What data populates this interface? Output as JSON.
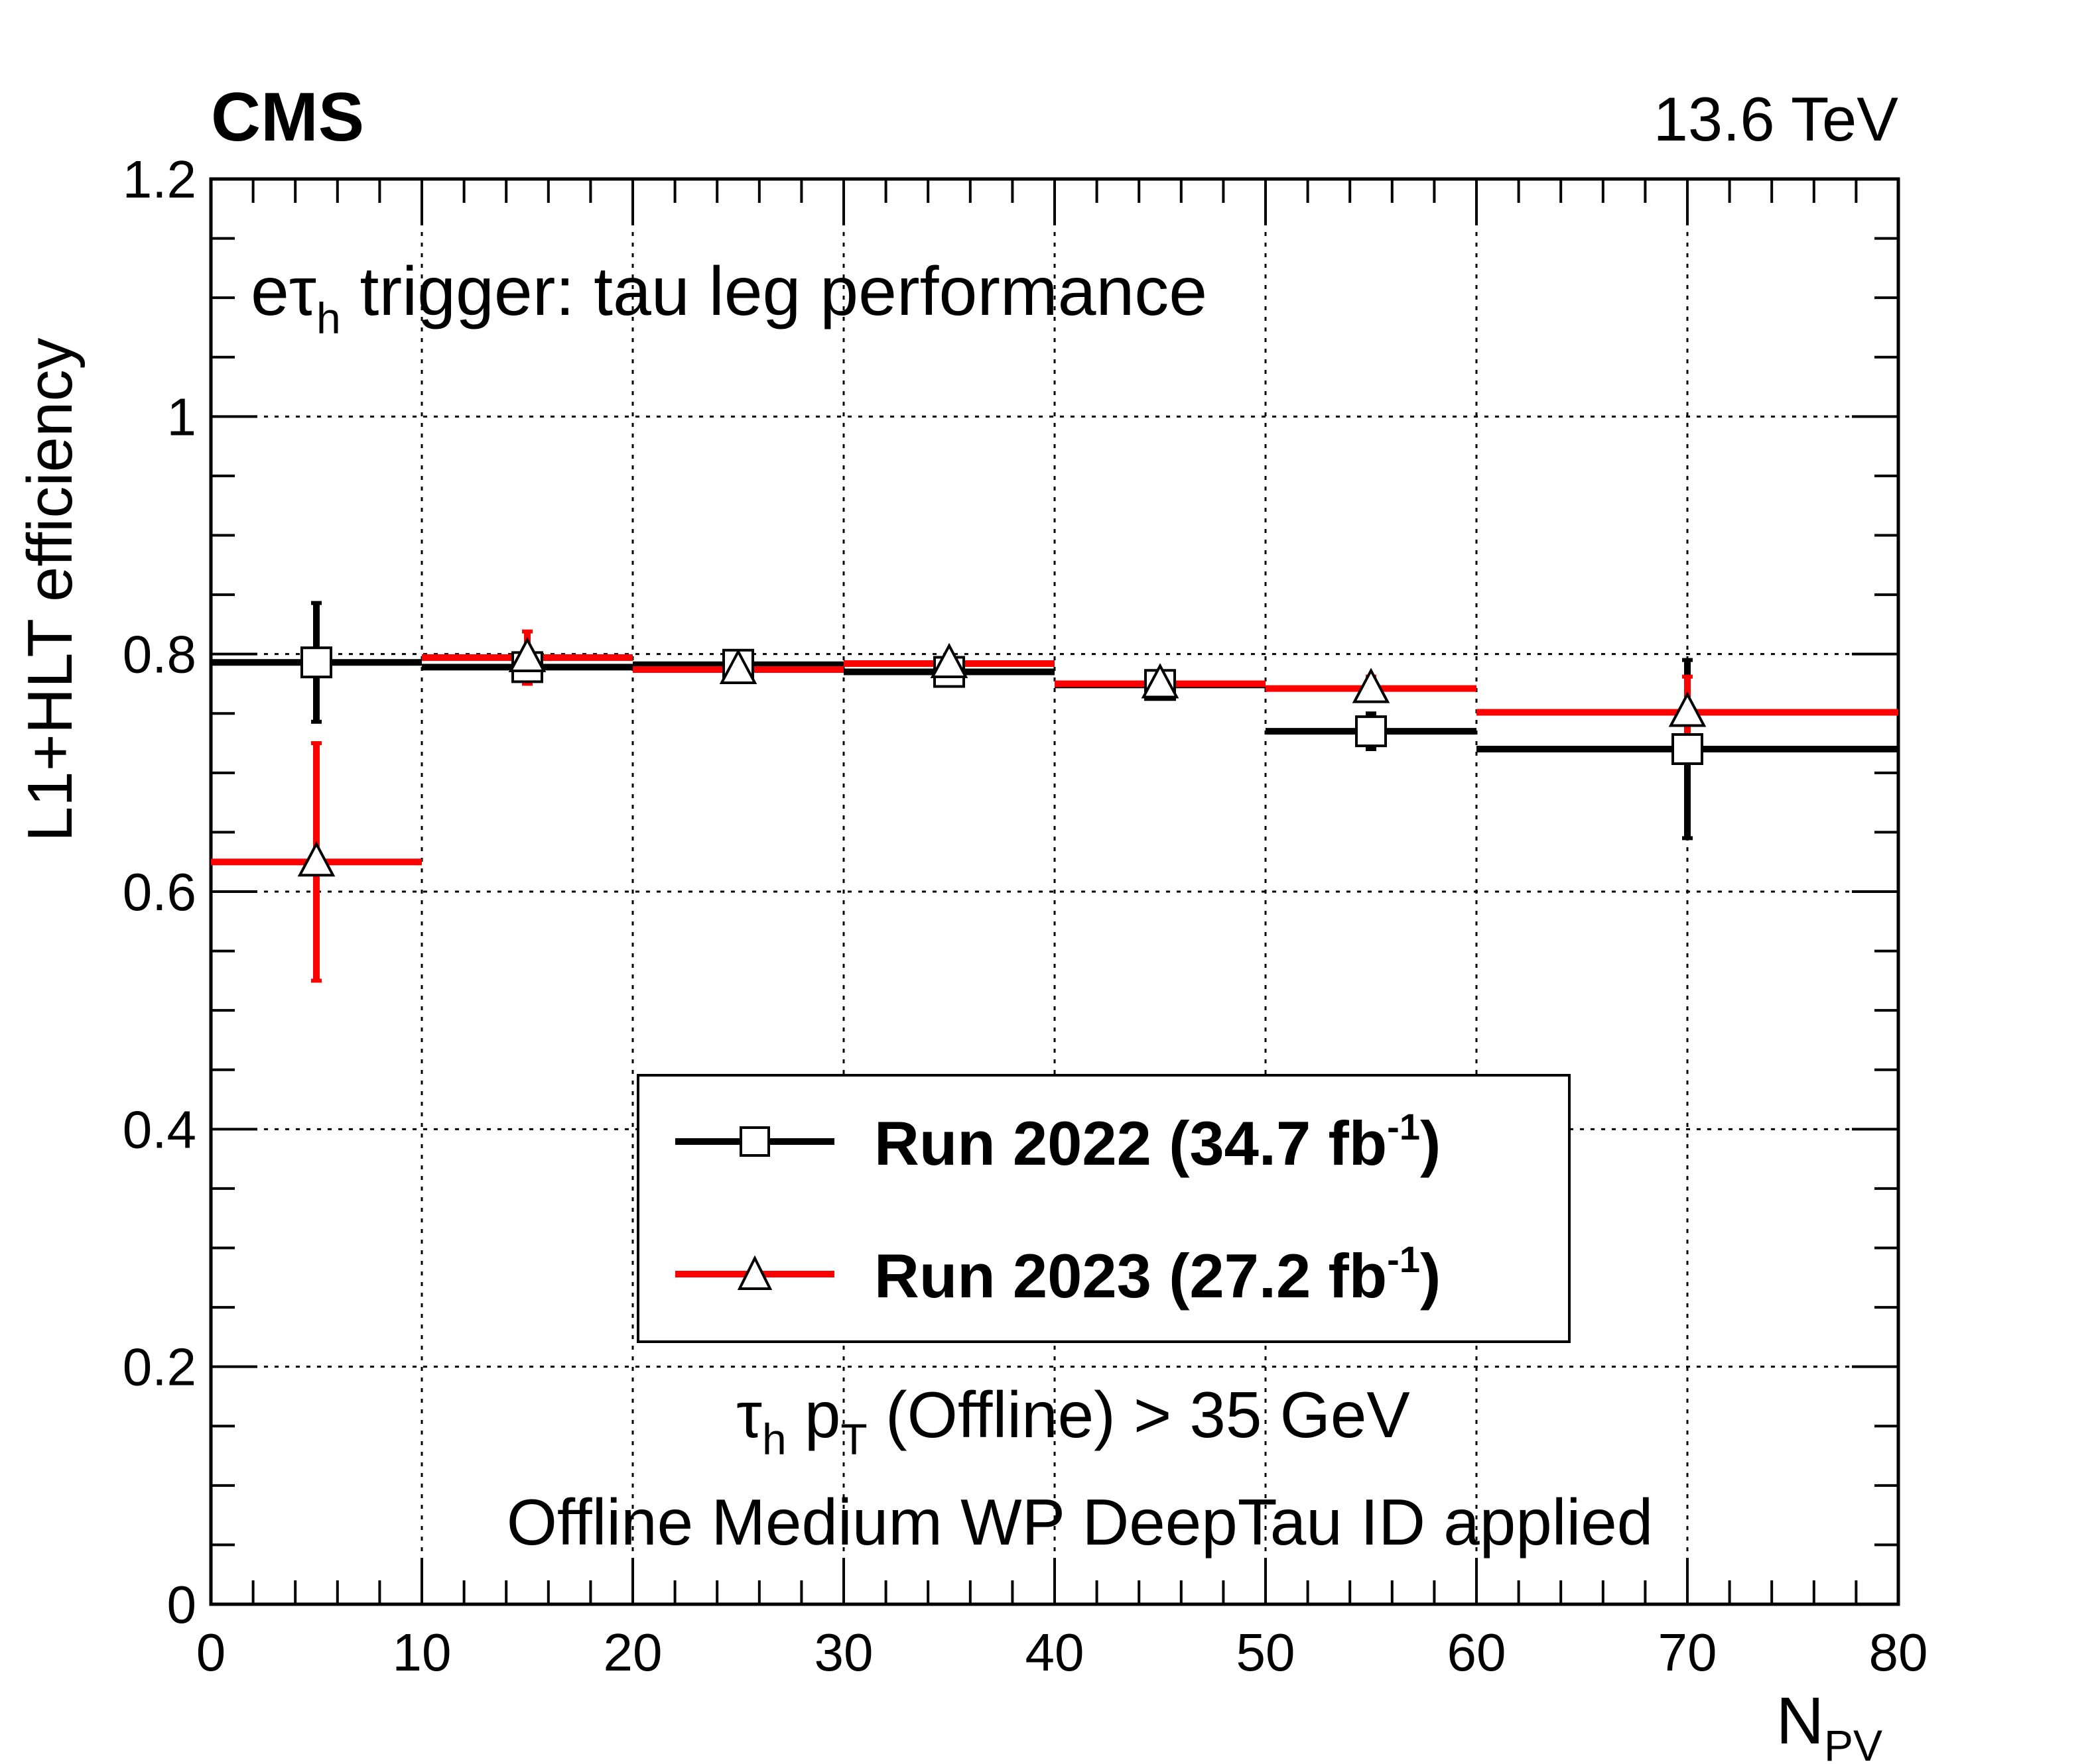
{
  "chart_data": {
    "type": "scatter",
    "experiment_label": "CMS",
    "energy_label": "13.6 TeV",
    "ylabel": "L1+HLT efficiency",
    "xlabel": {
      "main": "N",
      "sub": "PV"
    },
    "xlim": [
      0,
      80
    ],
    "ylim": [
      0,
      1.2
    ],
    "x_ticks": [
      0,
      10,
      20,
      30,
      40,
      50,
      60,
      70,
      80
    ],
    "x_tick_labels": [
      "0",
      "10",
      "20",
      "30",
      "40",
      "50",
      "60",
      "70",
      "80"
    ],
    "y_ticks": [
      0,
      0.2,
      0.4,
      0.6,
      0.8,
      1.0,
      1.2
    ],
    "y_tick_labels": [
      "0",
      "0.2",
      "0.4",
      "0.6",
      "0.8",
      "1",
      "1.2"
    ],
    "grid": true,
    "legend_position": "lower-center",
    "annotation": {
      "pre": "e",
      "tau": "τ",
      "sub": "h",
      "post": " trigger: tau leg performance"
    },
    "cut_line1": {
      "tau": "τ",
      "sub1": "h",
      "p": " p",
      "sub2": "T",
      "post": " (Offline) > 35 GeV"
    },
    "cut_line2": "Offline Medium WP DeepTau ID applied",
    "series": [
      {
        "name": "Run 2022 (34.7 fb",
        "name_sup": "-1",
        "name_end": ")",
        "color": "#000000",
        "marker": "open-square",
        "x": [
          5,
          15,
          25,
          35,
          45,
          55,
          70
        ],
        "xlow": [
          0,
          10,
          20,
          30,
          40,
          50,
          60
        ],
        "xhigh": [
          10,
          20,
          30,
          40,
          50,
          60,
          80
        ],
        "y": [
          0.793,
          0.789,
          0.791,
          0.785,
          0.774,
          0.735,
          0.72
        ],
        "yerr_low": [
          0.05,
          0.01,
          0.005,
          0.005,
          0.008,
          0.015,
          0.075
        ],
        "yerr_high": [
          0.05,
          0.01,
          0.005,
          0.005,
          0.008,
          0.015,
          0.075
        ]
      },
      {
        "name": "Run 2023 (27.2 fb",
        "name_sup": "-1",
        "name_end": ")",
        "color": "#ff0000",
        "marker": "open-triangle",
        "x": [
          5,
          15,
          25,
          35,
          45,
          55,
          70
        ],
        "xlow": [
          0,
          10,
          20,
          30,
          40,
          50,
          60
        ],
        "xhigh": [
          10,
          20,
          30,
          40,
          50,
          60,
          80
        ],
        "y": [
          0.625,
          0.797,
          0.787,
          0.792,
          0.775,
          0.771,
          0.751
        ],
        "yerr_low": [
          0.1,
          0.022,
          0.005,
          0.005,
          0.005,
          0.01,
          0.03
        ],
        "yerr_high": [
          0.1,
          0.022,
          0.005,
          0.005,
          0.005,
          0.01,
          0.03
        ]
      }
    ]
  }
}
